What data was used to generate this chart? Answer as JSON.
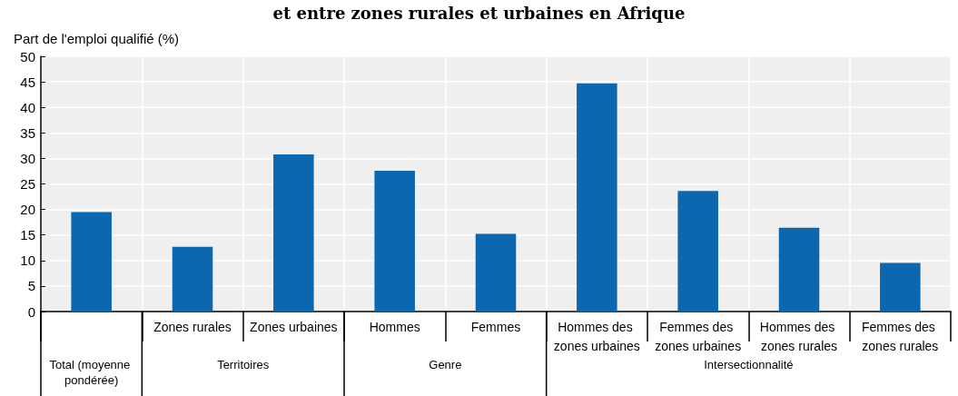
{
  "chart_data": {
    "type": "bar",
    "title": "et entre zones rurales et urbaines en Afrique",
    "ylabel": "Part de l'emploi qualifié (%)",
    "categories": [
      null,
      "Zones rurales",
      "Zones urbaines",
      "Hommes",
      "Femmes",
      "Hommes des zones urbaines",
      "Femmes des zones urbaines",
      "Hommes des zones rurales",
      "Femmes des zones rurales"
    ],
    "values": [
      19.5,
      12.7,
      30.8,
      27.6,
      15.2,
      44.7,
      23.6,
      16.4,
      9.5
    ],
    "color": "#0c67ae",
    "ylim": [
      0,
      50
    ],
    "yticks": [
      0,
      5,
      10,
      15,
      20,
      25,
      30,
      35,
      40,
      45,
      50
    ],
    "grid": true,
    "annotations": [
      "Total (moyenne pondérée)",
      "Territoires",
      "Genre",
      "Intersectionnalité"
    ]
  }
}
